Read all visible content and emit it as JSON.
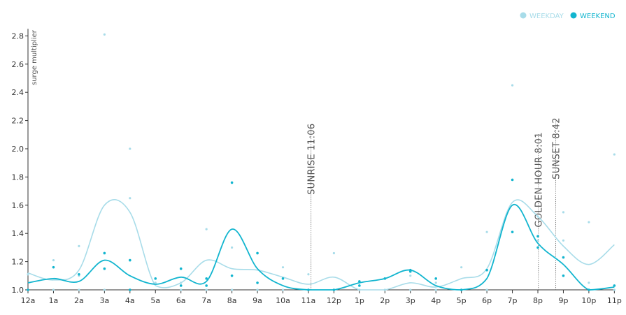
{
  "chart_data": {
    "type": "scatter",
    "ylabel": "surge multiplier",
    "ylim": [
      1.0,
      2.85
    ],
    "y_ticks": [
      "1.0",
      "1.2",
      "1.4",
      "1.6",
      "1.8",
      "2.0",
      "2.2",
      "2.4",
      "2.6",
      "2.8"
    ],
    "categories": [
      "12a",
      "1a",
      "2a",
      "3a",
      "4a",
      "5a",
      "6a",
      "7a",
      "8a",
      "9a",
      "10a",
      "11a",
      "12p",
      "1p",
      "2p",
      "3p",
      "4p",
      "5p",
      "6p",
      "7p",
      "8p",
      "9p",
      "10p",
      "11p"
    ],
    "legend": {
      "position": "top-right",
      "entries": [
        {
          "label": "WEEKDAY",
          "color": "#a8dce9"
        },
        {
          "label": "WEEKEND",
          "color": "#12b5cf"
        }
      ]
    },
    "series": [
      {
        "name": "WEEKDAY",
        "color": "#a8dce9",
        "points": [
          {
            "x": 0,
            "y": 1.0
          },
          {
            "x": 0,
            "y": 1.11
          },
          {
            "x": 1,
            "y": 1.0
          },
          {
            "x": 1,
            "y": 1.21
          },
          {
            "x": 2,
            "y": 1.0
          },
          {
            "x": 2,
            "y": 1.31
          },
          {
            "x": 2,
            "y": 1.1
          },
          {
            "x": 3,
            "y": 2.81
          },
          {
            "x": 3,
            "y": 1.0
          },
          {
            "x": 4,
            "y": 2.0
          },
          {
            "x": 4,
            "y": 1.65
          },
          {
            "x": 4,
            "y": 1.0
          },
          {
            "x": 5,
            "y": 1.05
          },
          {
            "x": 6,
            "y": 1.0
          },
          {
            "x": 6,
            "y": 1.05
          },
          {
            "x": 7,
            "y": 1.43
          },
          {
            "x": 7,
            "y": 1.0
          },
          {
            "x": 8,
            "y": 1.3
          },
          {
            "x": 8,
            "y": 1.0
          },
          {
            "x": 9,
            "y": 1.0
          },
          {
            "x": 10,
            "y": 1.16
          },
          {
            "x": 10,
            "y": 1.0
          },
          {
            "x": 11,
            "y": 1.11
          },
          {
            "x": 11,
            "y": 1.0
          },
          {
            "x": 12,
            "y": 1.26
          },
          {
            "x": 12,
            "y": 1.0
          },
          {
            "x": 13,
            "y": 1.0
          },
          {
            "x": 14,
            "y": 1.0
          },
          {
            "x": 15,
            "y": 1.1
          },
          {
            "x": 15,
            "y": 1.0
          },
          {
            "x": 16,
            "y": 1.0
          },
          {
            "x": 16,
            "y": 1.05
          },
          {
            "x": 17,
            "y": 1.16
          },
          {
            "x": 17,
            "y": 1.0
          },
          {
            "x": 18,
            "y": 1.41
          },
          {
            "x": 18,
            "y": 1.0
          },
          {
            "x": 19,
            "y": 2.45
          },
          {
            "x": 19,
            "y": 1.41
          },
          {
            "x": 20,
            "y": 1.52
          },
          {
            "x": 20,
            "y": 1.35
          },
          {
            "x": 21,
            "y": 1.55
          },
          {
            "x": 21,
            "y": 1.35
          },
          {
            "x": 22,
            "y": 1.48
          },
          {
            "x": 22,
            "y": 1.05
          },
          {
            "x": 23,
            "y": 1.96
          },
          {
            "x": 23,
            "y": 1.0
          }
        ],
        "trend": [
          1.12,
          1.07,
          1.14,
          1.6,
          1.55,
          1.03,
          1.05,
          1.21,
          1.15,
          1.14,
          1.09,
          1.04,
          1.09,
          1.0,
          1.0,
          1.05,
          1.02,
          1.08,
          1.15,
          1.62,
          1.52,
          1.31,
          1.18,
          1.32
        ]
      },
      {
        "name": "WEEKEND",
        "color": "#12b5cf",
        "points": [
          {
            "x": 0,
            "y": 1.0
          },
          {
            "x": 1,
            "y": 1.16
          },
          {
            "x": 2,
            "y": 1.11
          },
          {
            "x": 3,
            "y": 1.26
          },
          {
            "x": 3,
            "y": 1.15
          },
          {
            "x": 4,
            "y": 1.21
          },
          {
            "x": 4,
            "y": 1.0
          },
          {
            "x": 5,
            "y": 1.08
          },
          {
            "x": 6,
            "y": 1.15
          },
          {
            "x": 6,
            "y": 1.03
          },
          {
            "x": 7,
            "y": 1.08
          },
          {
            "x": 7,
            "y": 1.03
          },
          {
            "x": 8,
            "y": 1.76
          },
          {
            "x": 8,
            "y": 1.1
          },
          {
            "x": 9,
            "y": 1.26
          },
          {
            "x": 9,
            "y": 1.05
          },
          {
            "x": 10,
            "y": 1.08
          },
          {
            "x": 11,
            "y": 1.0
          },
          {
            "x": 12,
            "y": 1.0
          },
          {
            "x": 13,
            "y": 1.06
          },
          {
            "x": 13,
            "y": 1.03
          },
          {
            "x": 14,
            "y": 1.08
          },
          {
            "x": 15,
            "y": 1.14
          },
          {
            "x": 15,
            "y": 1.13
          },
          {
            "x": 16,
            "y": 1.08
          },
          {
            "x": 17,
            "y": 1.0
          },
          {
            "x": 18,
            "y": 1.14
          },
          {
            "x": 19,
            "y": 1.78
          },
          {
            "x": 19,
            "y": 1.41
          },
          {
            "x": 20,
            "y": 1.38
          },
          {
            "x": 20,
            "y": 1.3
          },
          {
            "x": 21,
            "y": 1.23
          },
          {
            "x": 21,
            "y": 1.1
          },
          {
            "x": 22,
            "y": 1.0
          },
          {
            "x": 23,
            "y": 1.03
          }
        ],
        "trend": [
          1.05,
          1.08,
          1.06,
          1.21,
          1.1,
          1.04,
          1.09,
          1.06,
          1.43,
          1.15,
          1.03,
          1.0,
          1.0,
          1.05,
          1.08,
          1.14,
          1.03,
          1.0,
          1.08,
          1.6,
          1.33,
          1.18,
          1.0,
          1.02
        ]
      }
    ],
    "annotations": [
      {
        "label": "SUNRISE 11:06",
        "x": 11.1
      },
      {
        "label": "GOLDEN HOUR 8:01",
        "x": 20.02
      },
      {
        "label": "SUNSET 8:42",
        "x": 20.7
      }
    ]
  }
}
